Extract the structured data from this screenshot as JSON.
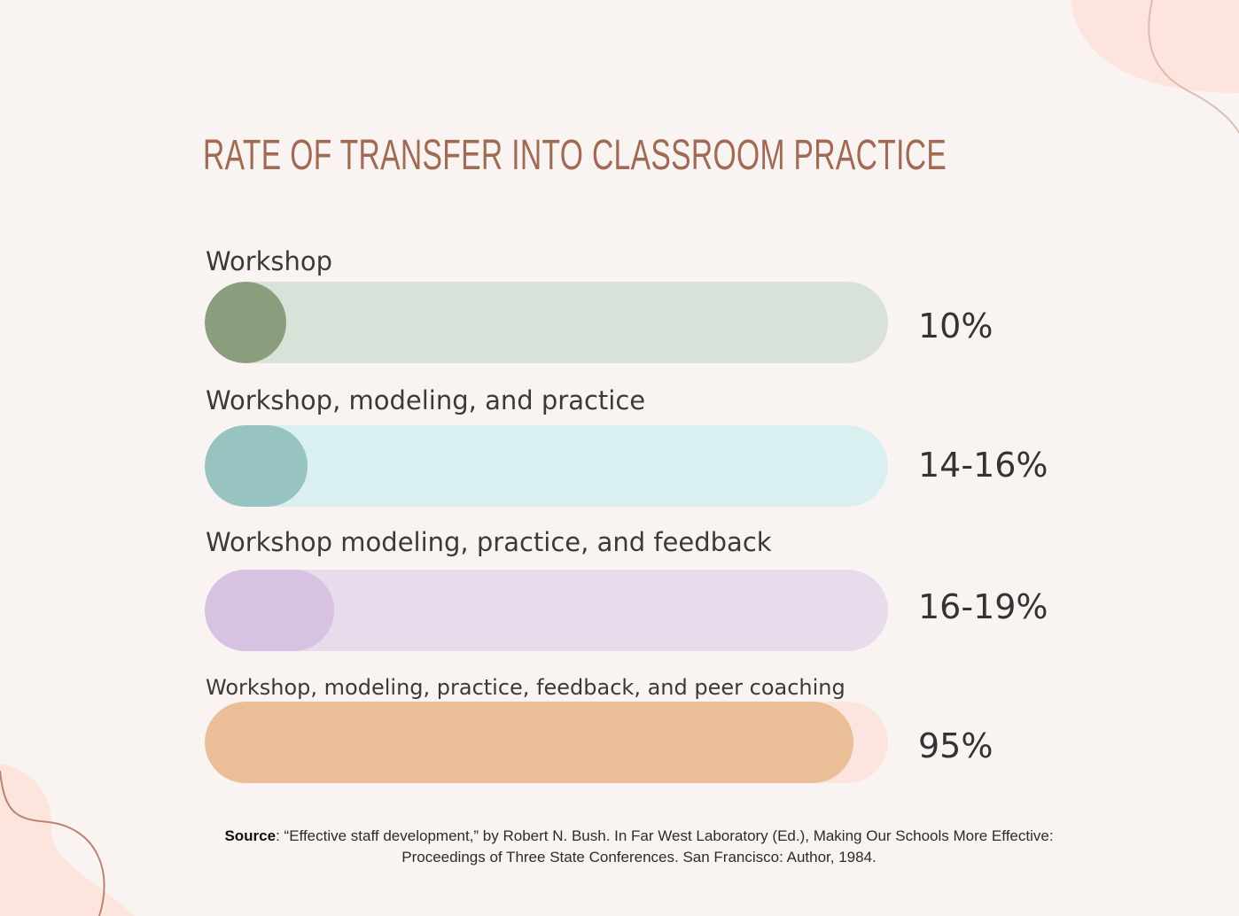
{
  "colors": {
    "background": "#f9f4f1",
    "title": "#a06a55",
    "text": "#333333",
    "blob": "#fde4dd",
    "swirl": "#b98474"
  },
  "chart_data": {
    "type": "bar",
    "orientation": "horizontal",
    "title": "RATE OF TRANSFER INTO CLASSROOM PRACTICE",
    "unit": "%",
    "xlim": [
      0,
      100
    ],
    "categories": [
      "Workshop",
      "Workshop, modeling, and practice",
      "Workshop modeling, practice, and feedback",
      "Workshop, modeling, practice, feedback, and peer coaching"
    ],
    "values": [
      10,
      15,
      19,
      95
    ],
    "value_labels": [
      "10%",
      "14-16%",
      "16-19%",
      "95%"
    ],
    "track_colors": [
      "#d9e2d8",
      "#d9eff0",
      "#e7dbec",
      "#fce5de"
    ],
    "fill_colors": [
      "#8a9e7e",
      "#97c3c1",
      "#d8c2e1",
      "#eabe97"
    ],
    "source_label": "Source",
    "source_text": ": “Effective staff development,” by Robert N. Bush. In Far West Laboratory (Ed.), Making Our Schools More Effective: Proceedings of Three State Conferences. San Francisco: Author, 1984."
  }
}
